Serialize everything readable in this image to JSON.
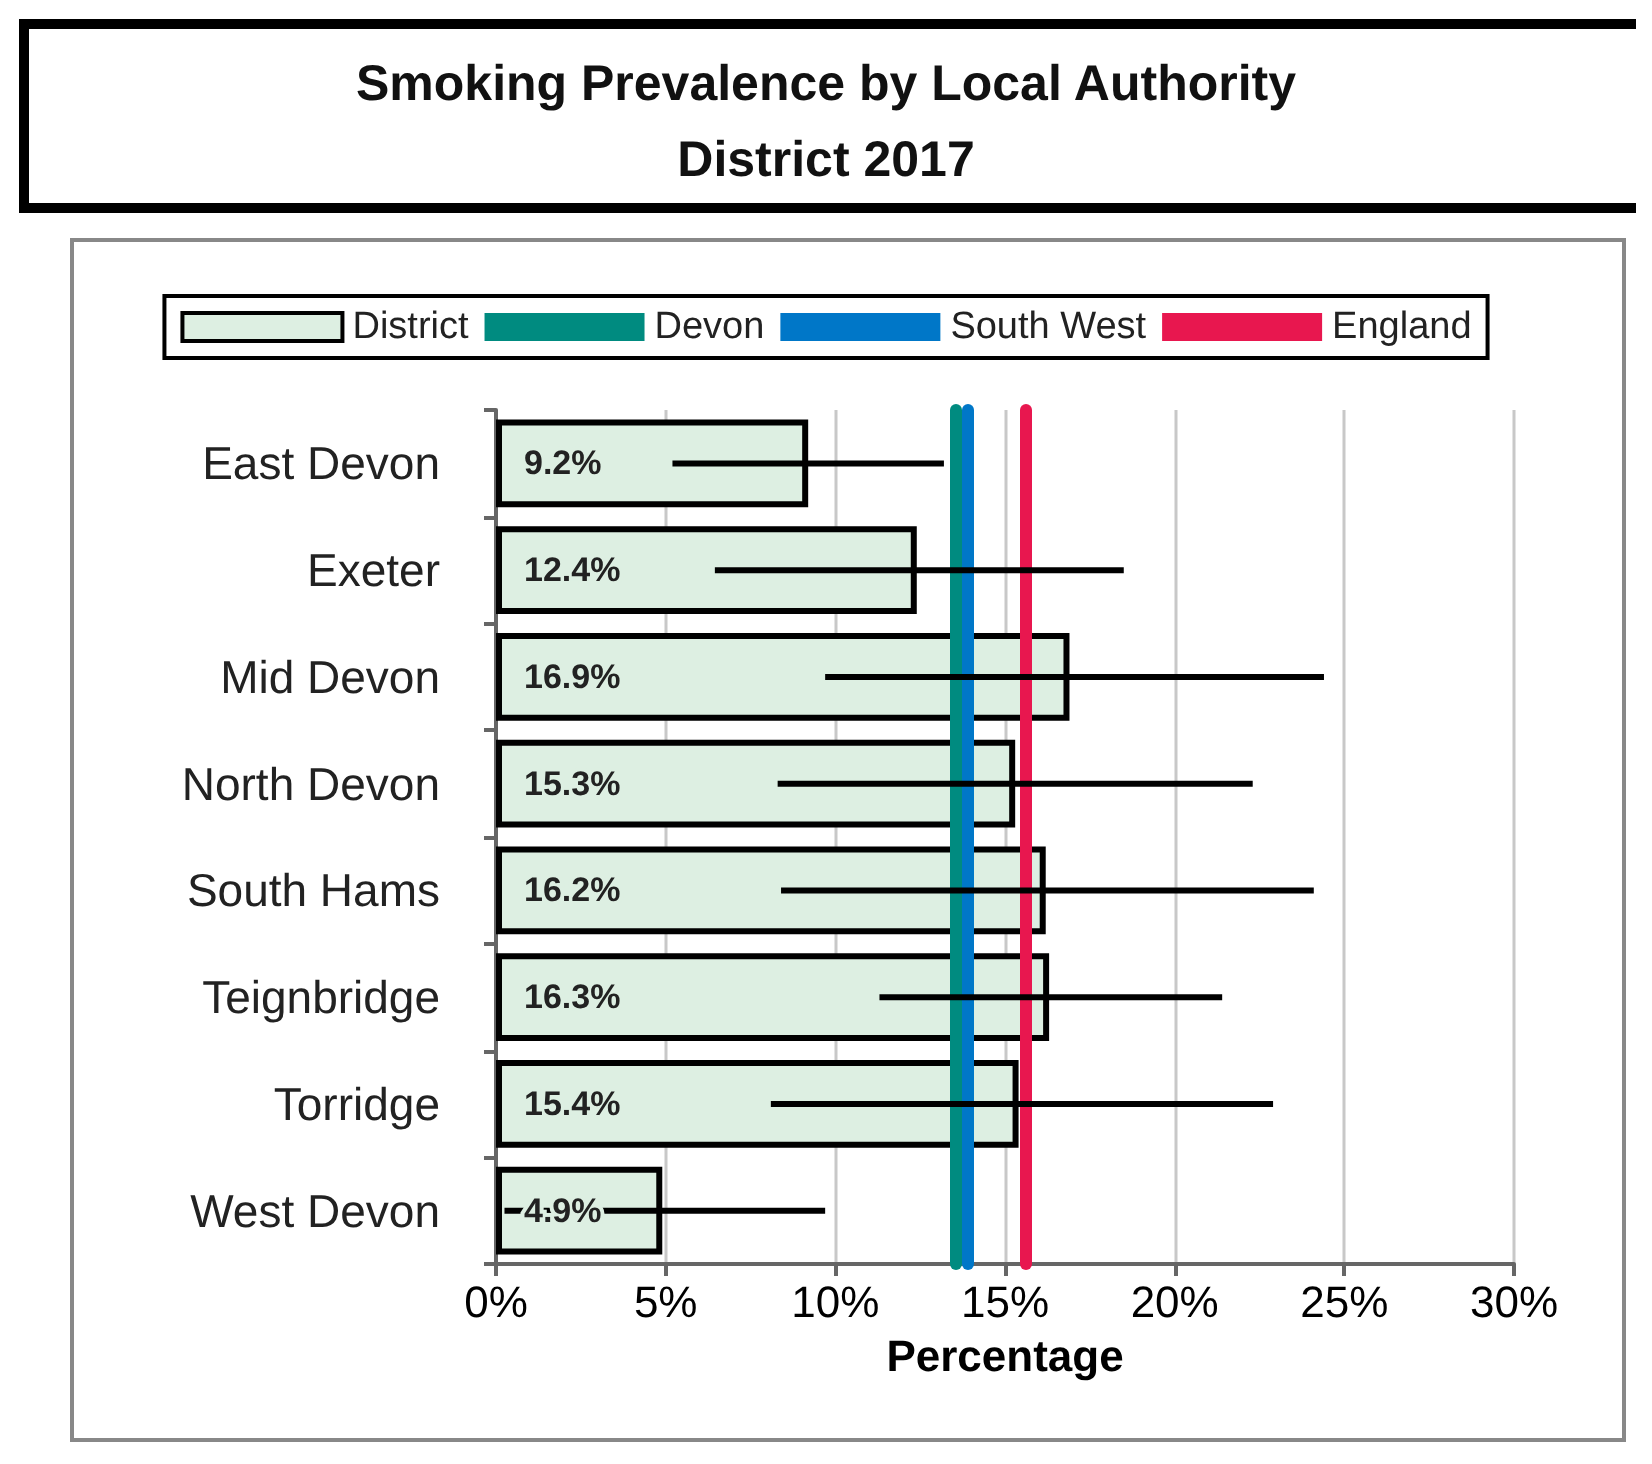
{
  "chart_data": {
    "type": "bar",
    "orientation": "horizontal",
    "title": "Smoking Prevalence by Local Authority\nDistrict 2017",
    "xlabel": "Percentage",
    "categories": [
      "East Devon",
      "Exeter",
      "Mid Devon",
      "North Devon",
      "South Hams",
      "Teignbridge",
      "Torridge",
      "West Devon"
    ],
    "series": [
      {
        "name": "District",
        "color": "#ddefe2",
        "values": [
          9.2,
          12.4,
          16.9,
          15.3,
          16.2,
          16.3,
          15.4,
          4.9
        ],
        "value_labels": [
          "9.2%",
          "12.4%",
          "16.9%",
          "15.3%",
          "16.2%",
          "16.3%",
          "15.4%",
          "4.9%"
        ],
        "errors": [
          [
            5.2,
            13.2
          ],
          [
            6.45,
            18.5
          ],
          [
            9.7,
            24.4
          ],
          [
            8.3,
            22.3
          ],
          [
            8.4,
            24.1
          ],
          [
            11.3,
            21.4
          ],
          [
            8.1,
            22.9
          ],
          [
            0.25,
            9.7
          ]
        ]
      }
    ],
    "ref_lines": [
      {
        "axis": "x",
        "value": 13.55,
        "label": "Devon",
        "color": "#008b80"
      },
      {
        "axis": "x",
        "value": 13.9,
        "label": "South West",
        "color": "#0077c8"
      },
      {
        "axis": "x",
        "value": 15.6,
        "label": "England",
        "color": "#e8174f"
      }
    ],
    "xlim": [
      0,
      30
    ],
    "xticks": [
      {
        "value": 0,
        "label": "0%"
      },
      {
        "value": 5,
        "label": "5%"
      },
      {
        "value": 10,
        "label": "10%"
      },
      {
        "value": 15,
        "label": "15%"
      },
      {
        "value": 20,
        "label": "20%"
      },
      {
        "value": 25,
        "label": "25%"
      },
      {
        "value": 30,
        "label": "30%"
      }
    ],
    "grid": "x",
    "legend": "top"
  }
}
